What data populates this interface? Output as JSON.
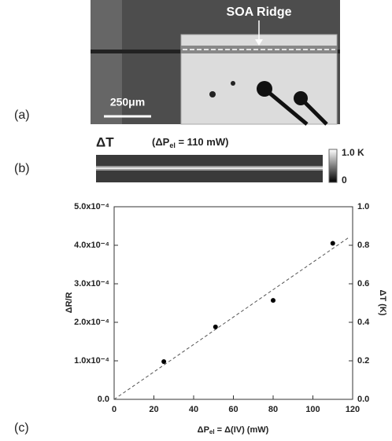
{
  "panel_a": {
    "label": "(a)",
    "annotation": "SOA Ridge",
    "scale_bar": "250μm"
  },
  "panel_b": {
    "label": "(b)",
    "title": "ΔT",
    "condition_main": "(ΔP",
    "condition_sub": "el",
    "condition_rest": " = 110 mW)",
    "colorbar_top": "1.0 K",
    "colorbar_bottom": "0"
  },
  "chart_data": {
    "type": "scatter",
    "panel_label": "(c)",
    "x": [
      25,
      51,
      80,
      110
    ],
    "values": [
      9.8e-05,
      0.000188,
      0.000257,
      0.000405
    ],
    "color": "#000000",
    "fit_line": {
      "x": [
        0,
        118
      ],
      "values": [
        0,
        0.00042
      ]
    },
    "xlim": [
      0,
      120
    ],
    "xticks": [
      0,
      20,
      40,
      60,
      80,
      100,
      120
    ],
    "ylim": [
      0,
      0.0005
    ],
    "yticks": [
      {
        "value": 0,
        "label": "0.0"
      },
      {
        "value": 0.0001,
        "label": "1.0x10⁻⁴"
      },
      {
        "value": 0.0002,
        "label": "2.0x10⁻⁴"
      },
      {
        "value": 0.0003,
        "label": "3.0x10⁻⁴"
      },
      {
        "value": 0.0004,
        "label": "4.0x10⁻⁴"
      },
      {
        "value": 0.0005,
        "label": "5.0x10⁻⁴"
      }
    ],
    "y2lim": [
      0,
      1
    ],
    "y2ticks": [
      {
        "value": 0,
        "label": "0.0"
      },
      {
        "value": 0.2,
        "label": "0.2"
      },
      {
        "value": 0.4,
        "label": "0.4"
      },
      {
        "value": 0.6,
        "label": "0.6"
      },
      {
        "value": 0.8,
        "label": "0.8"
      },
      {
        "value": 1,
        "label": "1.0"
      }
    ],
    "ylabel": "ΔR/R",
    "y2label": "ΔT (K)",
    "xlabel_main": "ΔP",
    "xlabel_sub": "el",
    "xlabel_rest": " = Δ(IV) (mW)"
  }
}
